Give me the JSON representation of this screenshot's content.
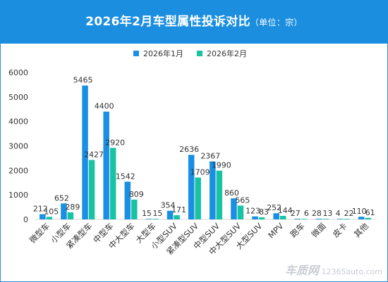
{
  "header": {
    "title": "2026年2月车型属性投诉对比",
    "subtitle": "（单位：宗）"
  },
  "watermark": {
    "brand": "车质网",
    "site": "12365auto.com"
  },
  "colors": {
    "banner": "#1b8ee0",
    "series1": "#1a8fe3",
    "series2": "#17c3a3"
  },
  "chart_data": {
    "type": "bar",
    "categories": [
      "微型车",
      "小型车",
      "紧凑型车",
      "中型车",
      "中大型车",
      "大型车",
      "小型SUV",
      "紧凑型SUV",
      "中型SUV",
      "中大型SUV",
      "大型SUV",
      "MPV",
      "跑车",
      "微面",
      "皮卡",
      "其他"
    ],
    "series": [
      {
        "name": "2026年1月",
        "values": [
          212,
          652,
          5465,
          4400,
          1542,
          15,
          354,
          2636,
          2367,
          860,
          123,
          252,
          27,
          28,
          4,
          110
        ]
      },
      {
        "name": "2026年2月",
        "values": [
          105,
          289,
          2427,
          2920,
          809,
          15,
          171,
          1709,
          1990,
          565,
          83,
          144,
          6,
          13,
          22,
          61
        ]
      }
    ],
    "ylim": [
      0,
      6000
    ],
    "yticks": [
      0,
      1000,
      2000,
      3000,
      4000,
      5000,
      6000
    ],
    "legend": "top",
    "grid": false
  }
}
